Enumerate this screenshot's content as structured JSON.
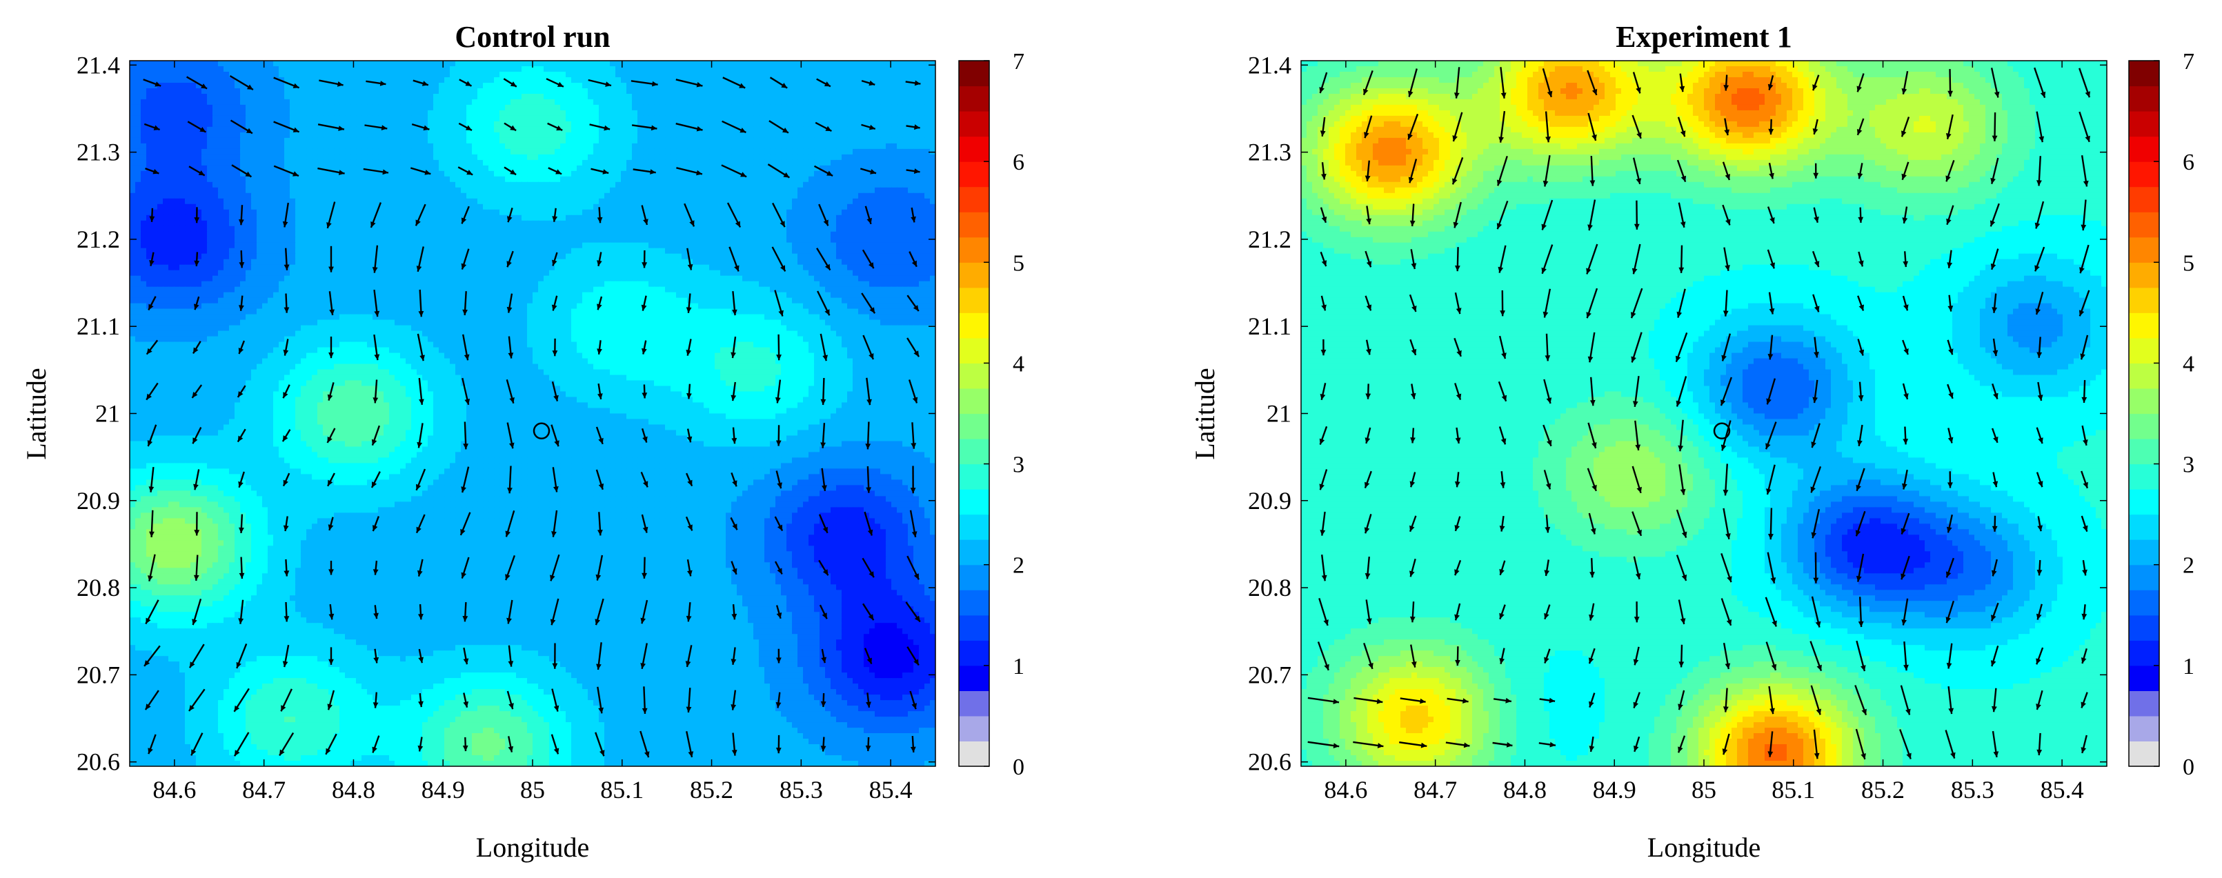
{
  "chart_data": [
    {
      "type": "heatmap",
      "subtype": "filled-contour-with-wind-vectors",
      "title": "Control run",
      "xlabel": "Longitude",
      "ylabel": "Latitude",
      "xlim": [
        84.55,
        85.45
      ],
      "ylim": [
        20.595,
        21.405
      ],
      "xticks": [
        84.6,
        84.7,
        84.8,
        84.9,
        85,
        85.1,
        85.2,
        85.3,
        85.4
      ],
      "xtick_labels": [
        "84.6",
        "84.7",
        "84.8",
        "84.9",
        "85",
        "85.1",
        "85.2",
        "85.3",
        "85.4"
      ],
      "yticks": [
        20.6,
        20.7,
        20.8,
        20.9,
        21,
        21.1,
        21.2,
        21.3,
        21.4
      ],
      "ytick_labels": [
        "20.6",
        "20.7",
        "20.8",
        "20.9",
        "21",
        "21.1",
        "21.2",
        "21.3",
        "21.4"
      ],
      "colorbar": {
        "min": 0,
        "max": 7,
        "ticks": [
          "0",
          "1",
          "2",
          "3",
          "4",
          "5",
          "6",
          "7"
        ]
      },
      "marker": {
        "lon": 85.01,
        "lat": 20.98,
        "shape": "open-circle"
      },
      "field_description_hotspots": [
        {
          "lon": 84.6,
          "lat": 20.85,
          "value": 3.7
        },
        {
          "lon": 84.8,
          "lat": 21.0,
          "value": 3.2
        },
        {
          "lon": 85.0,
          "lat": 21.33,
          "value": 2.9
        },
        {
          "lon": 85.1,
          "lat": 21.1,
          "value": 2.7
        },
        {
          "lon": 85.25,
          "lat": 21.05,
          "value": 2.8
        },
        {
          "lon": 84.95,
          "lat": 20.62,
          "value": 3.3
        },
        {
          "lon": 84.73,
          "lat": 20.65,
          "value": 3.0
        },
        {
          "lon": 84.6,
          "lat": 21.35,
          "value": 1.4
        },
        {
          "lon": 84.6,
          "lat": 21.2,
          "value": 1.1
        },
        {
          "lon": 85.4,
          "lat": 20.72,
          "value": 0.9
        },
        {
          "lon": 85.35,
          "lat": 20.86,
          "value": 1.1
        },
        {
          "lon": 85.4,
          "lat": 21.2,
          "value": 1.5
        }
      ],
      "background_value": 2.1,
      "wind_regime": "southward-east"
    },
    {
      "type": "heatmap",
      "subtype": "filled-contour-with-wind-vectors",
      "title": "Experiment 1",
      "xlabel": "Longitude",
      "ylabel": "Latitude",
      "xlim": [
        84.55,
        85.45
      ],
      "ylim": [
        20.595,
        21.405
      ],
      "xticks": [
        84.6,
        84.7,
        84.8,
        84.9,
        85,
        85.1,
        85.2,
        85.3,
        85.4
      ],
      "xtick_labels": [
        "84.6",
        "84.7",
        "84.8",
        "84.9",
        "85",
        "85.1",
        "85.2",
        "85.3",
        "85.4"
      ],
      "yticks": [
        20.6,
        20.7,
        20.8,
        20.9,
        21,
        21.1,
        21.2,
        21.3,
        21.4
      ],
      "ytick_labels": [
        "20.6",
        "20.7",
        "20.8",
        "20.9",
        "21",
        "21.1",
        "21.2",
        "21.3",
        "21.4"
      ],
      "colorbar": {
        "min": 0,
        "max": 7,
        "ticks": [
          "0",
          "1",
          "2",
          "3",
          "4",
          "5",
          "6",
          "7"
        ]
      },
      "marker": {
        "lon": 85.02,
        "lat": 20.98,
        "shape": "open-circle"
      },
      "field_description_hotspots": [
        {
          "lon": 84.65,
          "lat": 21.3,
          "value": 5.1
        },
        {
          "lon": 84.85,
          "lat": 21.37,
          "value": 5.0
        },
        {
          "lon": 85.05,
          "lat": 21.36,
          "value": 5.3
        },
        {
          "lon": 85.25,
          "lat": 21.33,
          "value": 4.0
        },
        {
          "lon": 84.68,
          "lat": 20.65,
          "value": 4.6
        },
        {
          "lon": 85.08,
          "lat": 20.61,
          "value": 5.3
        },
        {
          "lon": 84.92,
          "lat": 20.93,
          "value": 3.7
        },
        {
          "lon": 84.6,
          "lat": 21.05,
          "value": 3.0
        },
        {
          "lon": 85.08,
          "lat": 21.03,
          "value": 1.5
        },
        {
          "lon": 85.18,
          "lat": 20.85,
          "value": 1.2
        },
        {
          "lon": 85.3,
          "lat": 20.82,
          "value": 1.8
        },
        {
          "lon": 85.37,
          "lat": 21.1,
          "value": 1.9
        },
        {
          "lon": 84.8,
          "lat": 20.66,
          "value": 2.6
        }
      ],
      "background_value": 2.8,
      "wind_regime": "southward"
    }
  ]
}
